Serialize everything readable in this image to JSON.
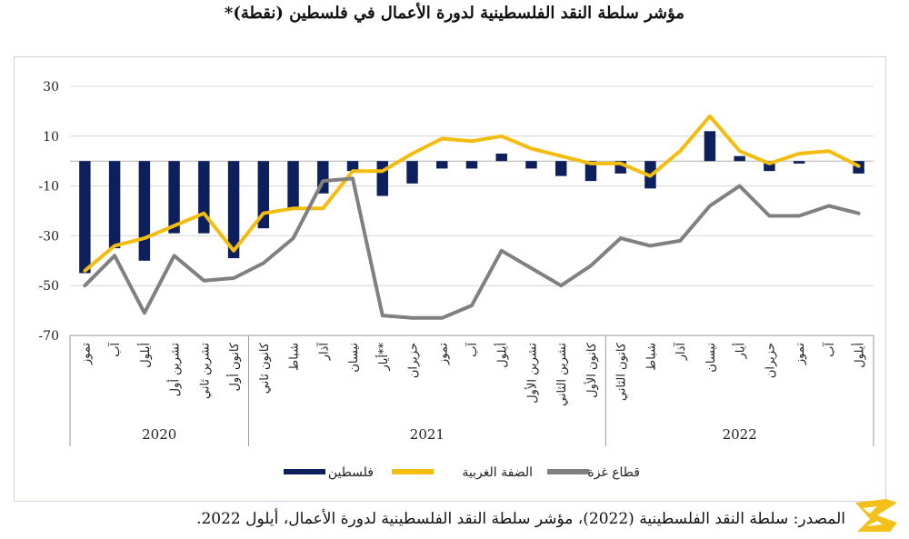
{
  "chart_data": {
    "type": "bar-line",
    "title": "مؤشر سلطة النقد الفلسطينية لدورة الأعمال في فلسطين (نقطة)*",
    "ylim": [
      -70,
      30
    ],
    "yticks": [
      30,
      10,
      -10,
      -30,
      -50,
      -70
    ],
    "grid": true,
    "legend_position": "bottom-center",
    "categories": [
      "تموز",
      "آب",
      "أيلول",
      "تشرين أول",
      "تشرين ثاني",
      "كانون أول",
      "كانون ثاني",
      "شباط",
      "آذار",
      "نيسان",
      "أيار**",
      "حزيران",
      "تموز",
      "آب",
      "أيلول",
      "تشرين الأول",
      "تشرين الثاني",
      "كانون الأول",
      "كانون الثاني",
      "شباط",
      "آذار",
      "نيسان",
      "أيار",
      "حزيران",
      "تموز",
      "آب",
      "أيلول"
    ],
    "years": [
      {
        "label": "2020",
        "start": 0,
        "end": 5
      },
      {
        "label": "2021",
        "start": 6,
        "end": 17
      },
      {
        "label": "2022",
        "start": 18,
        "end": 26
      }
    ],
    "series": [
      {
        "name": "فلسطين",
        "type": "bar",
        "color": "#0d1f5c",
        "values": [
          -45,
          -35,
          -40,
          -29,
          -29,
          -39,
          -27,
          -19,
          -13,
          -4,
          -14,
          -9,
          -3,
          -3,
          3,
          -3,
          -6,
          -8,
          -5,
          -11,
          0,
          12,
          2,
          -4,
          -1,
          0,
          -5
        ]
      },
      {
        "name": "الضفة الغربية",
        "type": "line",
        "color": "#f2bd0f",
        "values": [
          -44,
          -34,
          -31,
          -26,
          -21,
          -36,
          -21,
          -19,
          -19,
          -4,
          -4,
          3,
          9,
          8,
          10,
          5,
          2,
          -1,
          -1,
          -6,
          4,
          18,
          4,
          -1,
          3,
          4,
          -2
        ]
      },
      {
        "name": "قطاع غزة",
        "type": "line",
        "color": "#808080",
        "values": [
          -50,
          -38,
          -61,
          -38,
          -48,
          -47,
          -41,
          -31,
          -8,
          -7,
          -62,
          -63,
          -63,
          -58,
          -36,
          -43,
          -50,
          -42,
          -31,
          -34,
          -32,
          -18,
          -10,
          -22,
          -22,
          -18,
          -21
        ]
      }
    ]
  },
  "source_note": "المصدر: سلطة النقد الفلسطينية (2022)، مؤشر سلطة النقد الفلسطينية لدورة الأعمال، أيلول 2022."
}
